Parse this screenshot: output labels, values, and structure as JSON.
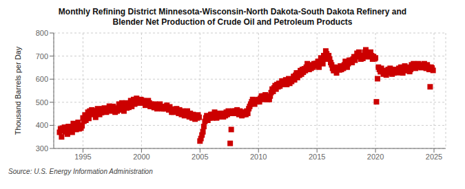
{
  "chart_data": {
    "type": "scatter",
    "title": "Monthly Refining District Minnesota-Wisconsin-North Dakota-South Dakota Refinery and\nBlender Net Production of Crude Oil and Petroleum Products",
    "ylabel": "Thousand Barrels per Day",
    "annotations": [
      "Source: U.S. Energy Information Administration"
    ],
    "color": "#cc0000",
    "marker": "square",
    "grid": true,
    "xlim": [
      1992.5,
      2026.0
    ],
    "ylim": [
      300,
      800
    ],
    "xticks": [
      1995,
      2000,
      2005,
      2010,
      2015,
      2020,
      2025
    ],
    "yticks": [
      300,
      400,
      500,
      600,
      700,
      800
    ],
    "x": [
      1993.0,
      1993.08,
      1993.17,
      1993.25,
      1993.33,
      1993.42,
      1993.5,
      1993.58,
      1993.67,
      1993.75,
      1993.83,
      1993.92,
      1994.0,
      1994.08,
      1994.17,
      1994.25,
      1994.33,
      1994.42,
      1994.5,
      1994.58,
      1994.67,
      1994.75,
      1994.83,
      1994.92,
      1995.0,
      1995.08,
      1995.17,
      1995.25,
      1995.33,
      1995.42,
      1995.5,
      1995.58,
      1995.67,
      1995.75,
      1995.83,
      1995.92,
      1996.0,
      1996.08,
      1996.17,
      1996.25,
      1996.33,
      1996.42,
      1996.5,
      1996.58,
      1996.67,
      1996.75,
      1996.83,
      1996.92,
      1997.0,
      1997.08,
      1997.17,
      1997.25,
      1997.33,
      1997.42,
      1997.5,
      1997.58,
      1997.67,
      1997.75,
      1997.83,
      1997.92,
      1998.0,
      1998.08,
      1998.17,
      1998.25,
      1998.33,
      1998.42,
      1998.5,
      1998.58,
      1998.67,
      1998.75,
      1998.83,
      1998.92,
      1999.0,
      1999.08,
      1999.17,
      1999.25,
      1999.33,
      1999.42,
      1999.5,
      1999.58,
      1999.67,
      1999.75,
      1999.83,
      1999.92,
      2000.0,
      2000.08,
      2000.17,
      2000.25,
      2000.33,
      2000.42,
      2000.5,
      2000.58,
      2000.67,
      2000.75,
      2000.83,
      2000.92,
      2001.0,
      2001.08,
      2001.17,
      2001.25,
      2001.33,
      2001.42,
      2001.5,
      2001.58,
      2001.67,
      2001.75,
      2001.83,
      2001.92,
      2002.0,
      2002.08,
      2002.17,
      2002.25,
      2002.33,
      2002.42,
      2002.5,
      2002.58,
      2002.67,
      2002.75,
      2002.83,
      2002.92,
      2003.0,
      2003.08,
      2003.17,
      2003.25,
      2003.33,
      2003.42,
      2003.5,
      2003.58,
      2003.67,
      2003.75,
      2003.83,
      2003.92,
      2004.0,
      2004.08,
      2004.17,
      2004.25,
      2004.33,
      2004.42,
      2004.5,
      2004.58,
      2004.67,
      2004.75,
      2004.83,
      2004.92,
      2005.0,
      2005.08,
      2005.17,
      2005.25,
      2005.33,
      2005.42,
      2005.5,
      2005.58,
      2005.67,
      2005.75,
      2005.83,
      2005.92,
      2006.0,
      2006.08,
      2006.17,
      2006.25,
      2006.33,
      2006.42,
      2006.5,
      2006.58,
      2006.67,
      2006.75,
      2006.83,
      2006.92,
      2007.0,
      2007.08,
      2007.17,
      2007.25,
      2007.33,
      2007.42,
      2007.5,
      2007.58,
      2007.67,
      2007.75,
      2007.83,
      2007.92,
      2008.0,
      2008.08,
      2008.17,
      2008.25,
      2008.33,
      2008.42,
      2008.5,
      2008.58,
      2008.67,
      2008.75,
      2008.83,
      2008.92,
      2009.0,
      2009.08,
      2009.17,
      2009.25,
      2009.33,
      2009.42,
      2009.5,
      2009.58,
      2009.67,
      2009.75,
      2009.83,
      2009.92,
      2010.0,
      2010.08,
      2010.17,
      2010.25,
      2010.33,
      2010.42,
      2010.5,
      2010.58,
      2010.67,
      2010.75,
      2010.83,
      2010.92,
      2011.0,
      2011.08,
      2011.17,
      2011.25,
      2011.33,
      2011.42,
      2011.5,
      2011.58,
      2011.67,
      2011.75,
      2011.83,
      2011.92,
      2012.0,
      2012.08,
      2012.17,
      2012.25,
      2012.33,
      2012.42,
      2012.5,
      2012.58,
      2012.67,
      2012.75,
      2012.83,
      2012.92,
      2013.0,
      2013.08,
      2013.17,
      2013.25,
      2013.33,
      2013.42,
      2013.5,
      2013.58,
      2013.67,
      2013.75,
      2013.83,
      2013.92,
      2014.0,
      2014.08,
      2014.17,
      2014.25,
      2014.33,
      2014.42,
      2014.5,
      2014.58,
      2014.67,
      2014.75,
      2014.83,
      2014.92,
      2015.0,
      2015.08,
      2015.17,
      2015.25,
      2015.33,
      2015.42,
      2015.5,
      2015.58,
      2015.67,
      2015.75,
      2015.83,
      2015.92,
      2016.0,
      2016.08,
      2016.17,
      2016.25,
      2016.33,
      2016.42,
      2016.5,
      2016.58,
      2016.67,
      2016.75,
      2016.83,
      2016.92,
      2017.0,
      2017.08,
      2017.17,
      2017.25,
      2017.33,
      2017.42,
      2017.5,
      2017.58,
      2017.67,
      2017.75,
      2017.83,
      2017.92,
      2018.0,
      2018.08,
      2018.17,
      2018.25,
      2018.33,
      2018.42,
      2018.5,
      2018.58,
      2018.67,
      2018.75,
      2018.83,
      2018.92,
      2019.0,
      2019.08,
      2019.17,
      2019.25,
      2019.33,
      2019.42,
      2019.5,
      2019.58,
      2019.67,
      2019.75,
      2019.83,
      2019.92,
      2020.0,
      2020.08,
      2020.17,
      2020.25,
      2020.33,
      2020.42,
      2020.5,
      2020.58,
      2020.67,
      2020.75,
      2020.83,
      2020.92,
      2021.0,
      2021.08,
      2021.17,
      2021.25,
      2021.33,
      2021.42,
      2021.5,
      2021.58,
      2021.67,
      2021.75,
      2021.83,
      2021.92,
      2022.0,
      2022.08,
      2022.17,
      2022.25,
      2022.33,
      2022.42,
      2022.5,
      2022.58,
      2022.67,
      2022.75,
      2022.83,
      2022.92,
      2023.0,
      2023.08,
      2023.17,
      2023.25,
      2023.33,
      2023.42,
      2023.5,
      2023.58,
      2023.67,
      2023.75,
      2023.83,
      2023.92,
      2024.0,
      2024.08,
      2024.17,
      2024.25,
      2024.33,
      2024.42,
      2024.5,
      2024.58,
      2024.67,
      2024.75,
      2024.83,
      2024.92
    ],
    "values": [
      370,
      385,
      350,
      388,
      377,
      392,
      372,
      388,
      362,
      395,
      380,
      375,
      393,
      370,
      408,
      390,
      403,
      382,
      396,
      413,
      385,
      400,
      388,
      398,
      432,
      418,
      445,
      422,
      442,
      457,
      430,
      462,
      447,
      467,
      453,
      463,
      450,
      435,
      455,
      472,
      462,
      447,
      467,
      455,
      472,
      462,
      475,
      465,
      457,
      472,
      467,
      483,
      462,
      477,
      467,
      482,
      472,
      457,
      472,
      462,
      475,
      492,
      467,
      482,
      497,
      477,
      462,
      480,
      497,
      475,
      488,
      478,
      492,
      507,
      482,
      497,
      512,
      492,
      502,
      517,
      497,
      507,
      497,
      512,
      510,
      497,
      507,
      497,
      487,
      502,
      492,
      507,
      497,
      482,
      492,
      482,
      490,
      477,
      492,
      480,
      472,
      487,
      477,
      492,
      480,
      472,
      480,
      472,
      482,
      472,
      487,
      477,
      467,
      480,
      470,
      457,
      467,
      457,
      470,
      460,
      472,
      462,
      452,
      467,
      457,
      447,
      462,
      452,
      442,
      457,
      447,
      462,
      447,
      437,
      452,
      442,
      432,
      447,
      437,
      427,
      442,
      432,
      445,
      435,
      332,
      343,
      358,
      372,
      395,
      417,
      432,
      442,
      422,
      437,
      432,
      447,
      447,
      432,
      447,
      457,
      442,
      432,
      447,
      437,
      452,
      442,
      447,
      452,
      437,
      452,
      442,
      457,
      447,
      462,
      452,
      322,
      382,
      452,
      462,
      452,
      462,
      452,
      467,
      457,
      447,
      462,
      452,
      442,
      457,
      447,
      457,
      447,
      462,
      452,
      472,
      482,
      492,
      502,
      512,
      502,
      492,
      507,
      510,
      505,
      512,
      502,
      517,
      527,
      512,
      527,
      517,
      532,
      522,
      512,
      520,
      512,
      527,
      542,
      557,
      547,
      562,
      572,
      557,
      577,
      567,
      582,
      570,
      580,
      592,
      577,
      592,
      582,
      597,
      577,
      592,
      602,
      582,
      597,
      590,
      600,
      612,
      597,
      617,
      627,
      607,
      627,
      617,
      637,
      622,
      642,
      630,
      645,
      637,
      652,
      667,
      652,
      642,
      657,
      647,
      662,
      652,
      667,
      658,
      668,
      662,
      677,
      652,
      672,
      692,
      682,
      667,
      702,
      687,
      722,
      710,
      700,
      702,
      687,
      672,
      662,
      647,
      637,
      652,
      642,
      627,
      642,
      650,
      640,
      657,
      642,
      657,
      647,
      662,
      677,
      662,
      652,
      667,
      682,
      672,
      682,
      672,
      687,
      697,
      682,
      697,
      712,
      702,
      717,
      702,
      687,
      700,
      690,
      702,
      717,
      727,
      712,
      697,
      712,
      702,
      717,
      702,
      687,
      698,
      688,
      692,
      502,
      602,
      652,
      642,
      632,
      647,
      637,
      622,
      637,
      628,
      618,
      627,
      642,
      632,
      647,
      637,
      622,
      637,
      627,
      642,
      632,
      638,
      628,
      647,
      637,
      652,
      642,
      627,
      642,
      657,
      647,
      637,
      652,
      643,
      633,
      642,
      662,
      652,
      667,
      657,
      647,
      662,
      652,
      667,
      657,
      660,
      650,
      662,
      652,
      667,
      657,
      647,
      662,
      652,
      642,
      567,
      652,
      648,
      638
    ]
  }
}
